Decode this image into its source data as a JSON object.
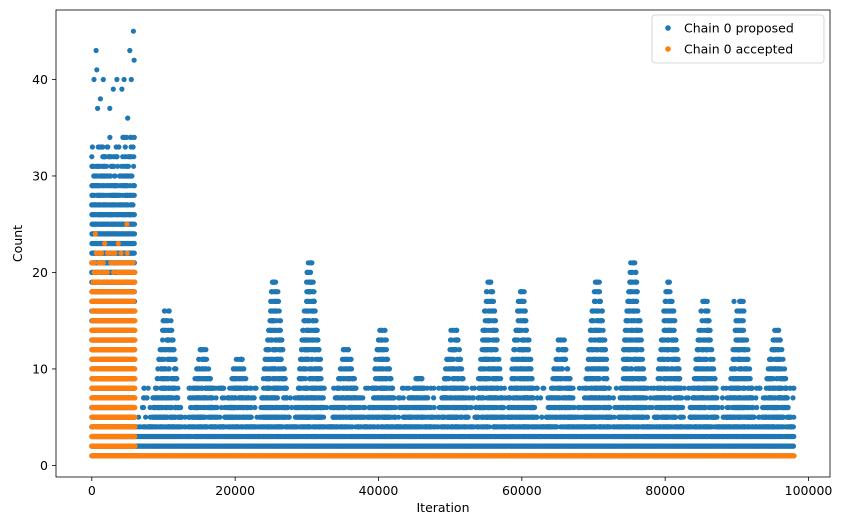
{
  "chart_data": {
    "type": "scatter",
    "xlabel": "Iteration",
    "ylabel": "Count",
    "xlim": [
      -5000,
      103000
    ],
    "ylim": [
      -1.2,
      47.2
    ],
    "xticks": [
      0,
      20000,
      40000,
      60000,
      80000,
      100000
    ],
    "xtick_labels": [
      "0",
      "20000",
      "40000",
      "60000",
      "80000",
      "100000"
    ],
    "yticks": [
      0,
      10,
      20,
      30,
      40
    ],
    "ytick_labels": [
      "0",
      "10",
      "20",
      "30",
      "40"
    ],
    "legend_position": "top-right",
    "grid": false,
    "series": [
      {
        "name": "Chain 0 proposed",
        "color": "#1f77b4",
        "x_range": [
          0,
          98000
        ],
        "burn_in_end": 6000,
        "bands": [
          {
            "x": [
              0,
              6000
            ],
            "y": [
              1,
              34
            ],
            "density": "solid"
          },
          {
            "x": [
              6000,
              98000
            ],
            "y": [
              1,
              4
            ],
            "density": "solid"
          }
        ],
        "periodic_peaks": [
          {
            "x": 10500,
            "ymax": 16
          },
          {
            "x": 15500,
            "ymax": 12
          },
          {
            "x": 20500,
            "ymax": 11
          },
          {
            "x": 25500,
            "ymax": 19
          },
          {
            "x": 30500,
            "ymax": 21
          },
          {
            "x": 35500,
            "ymax": 12
          },
          {
            "x": 40500,
            "ymax": 14
          },
          {
            "x": 45500,
            "ymax": 9
          },
          {
            "x": 50500,
            "ymax": 14
          },
          {
            "x": 55500,
            "ymax": 19
          },
          {
            "x": 60000,
            "ymax": 18
          },
          {
            "x": 65500,
            "ymax": 13
          },
          {
            "x": 70500,
            "ymax": 19
          },
          {
            "x": 75500,
            "ymax": 21
          },
          {
            "x": 80500,
            "ymax": 19
          },
          {
            "x": 85500,
            "ymax": 17
          },
          {
            "x": 90500,
            "ymax": 17
          },
          {
            "x": 95500,
            "ymax": 14
          }
        ],
        "outliers": [
          {
            "x": 600,
            "y": 43
          },
          {
            "x": 700,
            "y": 41
          },
          {
            "x": 300,
            "y": 40
          },
          {
            "x": 1600,
            "y": 40
          },
          {
            "x": 3500,
            "y": 40
          },
          {
            "x": 4500,
            "y": 40
          },
          {
            "x": 5300,
            "y": 43
          },
          {
            "x": 5800,
            "y": 45
          },
          {
            "x": 5900,
            "y": 42
          },
          {
            "x": 5500,
            "y": 40
          },
          {
            "x": 3000,
            "y": 39
          },
          {
            "x": 4200,
            "y": 39
          },
          {
            "x": 1200,
            "y": 38
          },
          {
            "x": 2500,
            "y": 37
          },
          {
            "x": 5000,
            "y": 36
          },
          {
            "x": 800,
            "y": 37
          },
          {
            "x": 25200,
            "y": 19
          },
          {
            "x": 25800,
            "y": 18
          },
          {
            "x": 30700,
            "y": 21
          },
          {
            "x": 55500,
            "y": 19
          },
          {
            "x": 59800,
            "y": 18
          },
          {
            "x": 60100,
            "y": 17
          },
          {
            "x": 70500,
            "y": 19
          },
          {
            "x": 75500,
            "y": 21
          },
          {
            "x": 80500,
            "y": 19
          },
          {
            "x": 85400,
            "y": 17
          },
          {
            "x": 89600,
            "y": 17
          },
          {
            "x": 90900,
            "y": 17
          }
        ]
      },
      {
        "name": "Chain 0 accepted",
        "color": "#ff7f0e",
        "x_range": [
          0,
          98000
        ],
        "bands": [
          {
            "x": [
              0,
              6000
            ],
            "y": [
              1,
              14
            ],
            "density": "solid"
          },
          {
            "x": [
              0,
              6000
            ],
            "y": [
              15,
              22
            ],
            "density": "sparse"
          },
          {
            "x": [
              6000,
              98000
            ],
            "y": [
              1,
              1
            ],
            "density": "solid"
          }
        ],
        "outliers": [
          {
            "x": 500,
            "y": 24
          },
          {
            "x": 1800,
            "y": 23
          },
          {
            "x": 3700,
            "y": 23
          },
          {
            "x": 4900,
            "y": 25
          },
          {
            "x": 2200,
            "y": 22
          },
          {
            "x": 5200,
            "y": 21
          }
        ]
      }
    ]
  }
}
